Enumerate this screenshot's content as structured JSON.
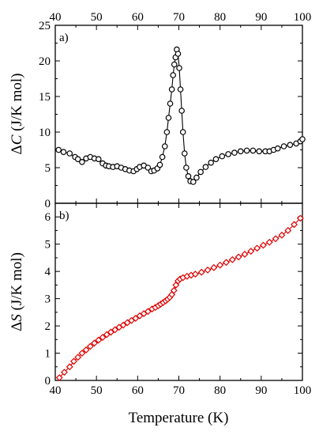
{
  "chart_data": [
    {
      "type": "scatter",
      "panel_label": "a)",
      "xlabel": "",
      "ylabel": "ΔC (J/K mol)",
      "ylabel_symbol": "C",
      "ylabel_prefix": "Δ",
      "ylabel_unit": " (J/K mol)",
      "xlim": [
        40,
        100
      ],
      "ylim": [
        0,
        25
      ],
      "xticks": [
        40,
        50,
        60,
        70,
        80,
        90,
        100
      ],
      "yticks": [
        0,
        5,
        10,
        15,
        20,
        25
      ],
      "color": "#000000",
      "marker": "circle",
      "x_tick_labels_position": "top",
      "series": [
        {
          "x": [
            40.8,
            42,
            43.5,
            44.8,
            45.5,
            46.5,
            47.5,
            48.5,
            49.5,
            50.5,
            51.5,
            52.3,
            53,
            54,
            55,
            56,
            57,
            58,
            59,
            59.8,
            60.5,
            61.5,
            62.5,
            63.3,
            64,
            64.8,
            65.4,
            66,
            66.6,
            67.1,
            67.5,
            67.9,
            68.3,
            68.6,
            68.9,
            69.2,
            69.5,
            69.8,
            70.1,
            70.4,
            70.7,
            71,
            71.4,
            71.8,
            72.3,
            72.8,
            73.5,
            74.3,
            75.3,
            76.5,
            77.8,
            79,
            80.5,
            82,
            83.5,
            85,
            86.5,
            88,
            89.5,
            91,
            92,
            93,
            94,
            95.5,
            97,
            98.5,
            99.5,
            100
          ],
          "y": [
            7.5,
            7.2,
            7,
            6.5,
            6.2,
            5.8,
            6.3,
            6.5,
            6.3,
            6.2,
            5.6,
            5.3,
            5.2,
            5.1,
            5.2,
            5,
            4.8,
            4.6,
            4.5,
            4.8,
            5.1,
            5.3,
            5,
            4.5,
            4.6,
            4.9,
            5.4,
            6.5,
            8,
            10,
            12,
            14,
            16,
            18,
            19.5,
            20.5,
            21.6,
            21,
            19,
            16,
            13,
            10,
            7,
            5,
            3.8,
            3.1,
            3,
            3.6,
            4.4,
            5.1,
            5.7,
            6.2,
            6.6,
            6.9,
            7.1,
            7.3,
            7.4,
            7.4,
            7.3,
            7.3,
            7.3,
            7.5,
            7.7,
            8,
            8.2,
            8.4,
            8.7,
            9
          ]
        }
      ]
    },
    {
      "type": "scatter",
      "panel_label": "b)",
      "xlabel": "Temperature (K)",
      "ylabel": "ΔS (J/K mol)",
      "ylabel_symbol": "S",
      "ylabel_prefix": "Δ",
      "ylabel_unit": " (J/K mol)",
      "xlim": [
        40,
        100
      ],
      "ylim": [
        0,
        6.5
      ],
      "xticks": [
        40,
        50,
        60,
        70,
        80,
        90,
        100
      ],
      "yticks": [
        0,
        1,
        2,
        3,
        4,
        5,
        6
      ],
      "color": "#e00000",
      "marker": "diamond",
      "series": [
        {
          "x": [
            41,
            42.2,
            43.5,
            44.5,
            45.5,
            46.5,
            47.5,
            48.5,
            49.5,
            50.5,
            51.5,
            52.5,
            53.5,
            54.5,
            55.5,
            56.5,
            57.5,
            58.5,
            59.5,
            60.5,
            61.5,
            62.5,
            63.5,
            64.3,
            65,
            65.6,
            66.2,
            66.8,
            67.3,
            67.8,
            68.3,
            68.8,
            69.3,
            69.8,
            70.3,
            71,
            72,
            73,
            74,
            75.5,
            77,
            78.5,
            80,
            81.5,
            83,
            84.5,
            86,
            87.5,
            89,
            90.5,
            92,
            93.5,
            95,
            96.5,
            98,
            99.5
          ],
          "y": [
            0.1,
            0.3,
            0.5,
            0.7,
            0.85,
            1,
            1.12,
            1.25,
            1.37,
            1.48,
            1.58,
            1.68,
            1.77,
            1.86,
            1.95,
            2.03,
            2.12,
            2.2,
            2.28,
            2.37,
            2.45,
            2.53,
            2.62,
            2.68,
            2.74,
            2.8,
            2.86,
            2.92,
            2.98,
            3.05,
            3.15,
            3.3,
            3.5,
            3.65,
            3.72,
            3.77,
            3.82,
            3.86,
            3.9,
            3.97,
            4.05,
            4.14,
            4.23,
            4.33,
            4.43,
            4.53,
            4.63,
            4.74,
            4.85,
            4.96,
            5.07,
            5.2,
            5.33,
            5.5,
            5.72,
            5.95
          ]
        }
      ]
    }
  ]
}
